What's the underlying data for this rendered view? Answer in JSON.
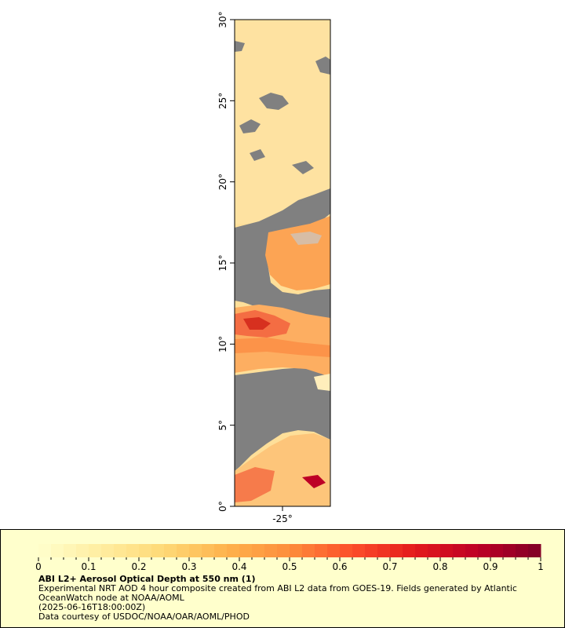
{
  "map": {
    "lat_axis_ticks": [
      "0°",
      "5°",
      "10°",
      "15°",
      "20°",
      "25°",
      "30°"
    ],
    "lat_axis_values": [
      0,
      5,
      10,
      15,
      20,
      25,
      30
    ],
    "lon_axis_ticks": [
      "-25°"
    ],
    "lon_axis_values": [
      -25
    ],
    "lat_range": [
      0,
      30
    ],
    "no_data_color": "#808080"
  },
  "legend": {
    "title": "ABI L2+ Aerosol Optical Depth at 550 nm (1)",
    "description_line1": "Experimental NRT AOD 4 hour composite created from ABI L2 data from GOES-19. Fields generated by Atlantic",
    "description_line2": "OceanWatch node at NOAA/AOML",
    "timestamp": "(2025-06-16T18:00:00Z)",
    "credit": "Data courtesy of USDOC/NOAA/OAR/AOML/PHOD",
    "colorbar_labels": [
      "0",
      "0.1",
      "0.2",
      "0.3",
      "0.4",
      "0.5",
      "0.6",
      "0.7",
      "0.8",
      "0.9",
      "1"
    ],
    "colorbar_range": [
      0,
      1
    ],
    "colorbar_colors": [
      "#ffffcc",
      "#ffeda0",
      "#fed976",
      "#feb24c",
      "#fd8d3c",
      "#fc4e2a",
      "#e31a1c",
      "#bd0026",
      "#800026"
    ]
  }
}
